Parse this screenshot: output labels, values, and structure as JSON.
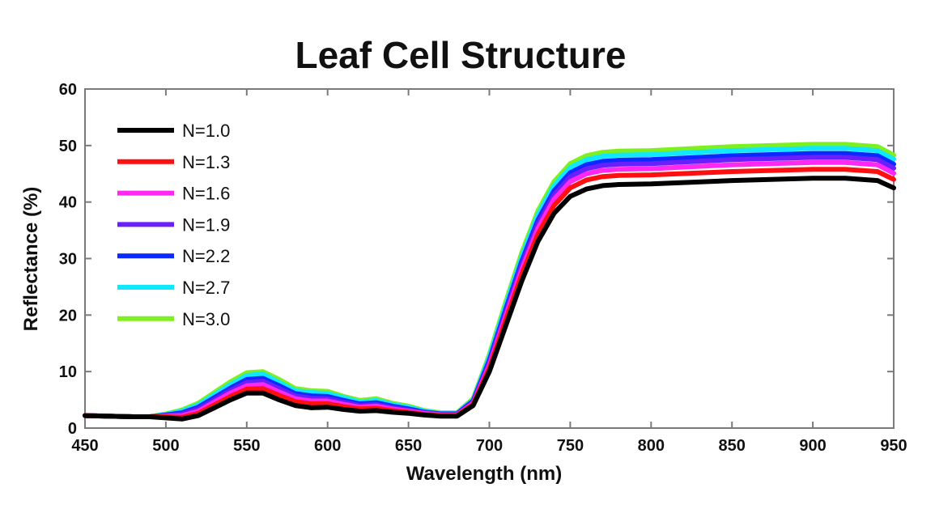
{
  "chart_data": {
    "type": "line",
    "title": "Leaf Cell Structure",
    "xlabel": "Wavelength (nm)",
    "ylabel": "Reflectance (%)",
    "xlim": [
      450,
      950
    ],
    "ylim": [
      0,
      60
    ],
    "x_ticks": [
      450,
      500,
      550,
      600,
      650,
      700,
      750,
      800,
      850,
      900,
      950
    ],
    "y_ticks": [
      0,
      10,
      20,
      30,
      40,
      50,
      60
    ],
    "grid": false,
    "legend_position": "top-left",
    "x": [
      450,
      480,
      490,
      500,
      510,
      520,
      530,
      540,
      550,
      560,
      570,
      580,
      590,
      600,
      610,
      620,
      630,
      640,
      650,
      660,
      670,
      680,
      690,
      700,
      710,
      720,
      730,
      740,
      750,
      760,
      770,
      780,
      800,
      850,
      900,
      920,
      940,
      950
    ],
    "series": [
      {
        "name": "N=1.0",
        "color": "#000000",
        "values": [
          2.2,
          2.0,
          2.0,
          1.8,
          1.6,
          2.2,
          3.6,
          5.0,
          6.2,
          6.2,
          5.0,
          4.0,
          3.6,
          3.7,
          3.3,
          3.0,
          3.1,
          2.8,
          2.6,
          2.3,
          2.1,
          2.1,
          4.0,
          10.0,
          18.0,
          26.0,
          33.0,
          38.0,
          41.0,
          42.3,
          42.9,
          43.1,
          43.2,
          43.8,
          44.2,
          44.2,
          43.8,
          42.5
        ]
      },
      {
        "name": "N=1.3",
        "color": "#ff1010",
        "values": [
          2.2,
          2.0,
          2.0,
          2.0,
          1.9,
          2.6,
          4.1,
          5.6,
          6.9,
          7.0,
          5.8,
          4.7,
          4.3,
          4.3,
          3.8,
          3.4,
          3.5,
          3.1,
          2.8,
          2.4,
          2.2,
          2.2,
          4.2,
          10.6,
          19.0,
          27.2,
          34.3,
          39.4,
          42.5,
          43.9,
          44.5,
          44.7,
          44.8,
          45.4,
          45.8,
          45.8,
          45.4,
          44.0
        ]
      },
      {
        "name": "N=1.6",
        "color": "#ff28f0",
        "values": [
          2.2,
          2.0,
          2.0,
          2.1,
          2.2,
          3.0,
          4.6,
          6.2,
          7.5,
          7.7,
          6.4,
          5.2,
          4.8,
          4.8,
          4.2,
          3.7,
          3.9,
          3.4,
          3.0,
          2.6,
          2.3,
          2.3,
          4.4,
          11.1,
          19.7,
          28.1,
          35.3,
          40.5,
          43.6,
          45.0,
          45.6,
          45.8,
          45.9,
          46.6,
          47.0,
          47.0,
          46.6,
          45.1
        ]
      },
      {
        "name": "N=1.9",
        "color": "#6a1fff",
        "values": [
          2.2,
          2.0,
          2.0,
          2.2,
          2.5,
          3.4,
          5.0,
          6.7,
          8.1,
          8.3,
          7.0,
          5.7,
          5.3,
          5.2,
          4.6,
          4.0,
          4.2,
          3.6,
          3.2,
          2.7,
          2.4,
          2.4,
          4.6,
          11.6,
          20.4,
          28.9,
          36.1,
          41.3,
          44.5,
          45.9,
          46.5,
          46.7,
          46.8,
          47.5,
          47.9,
          47.9,
          47.5,
          46.0
        ]
      },
      {
        "name": "N=2.2",
        "color": "#0a28ff",
        "values": [
          2.2,
          2.0,
          2.0,
          2.3,
          2.7,
          3.7,
          5.4,
          7.1,
          8.6,
          8.8,
          7.5,
          6.1,
          5.7,
          5.6,
          4.9,
          4.3,
          4.5,
          3.9,
          3.4,
          2.8,
          2.5,
          2.5,
          4.8,
          12.0,
          20.9,
          29.5,
          36.8,
          42.0,
          45.2,
          46.6,
          47.2,
          47.4,
          47.5,
          48.2,
          48.6,
          48.6,
          48.2,
          46.7
        ]
      },
      {
        "name": "N=2.7",
        "color": "#10e8ff",
        "values": [
          2.2,
          2.0,
          2.0,
          2.4,
          3.0,
          4.1,
          5.9,
          7.7,
          9.3,
          9.6,
          8.1,
          6.6,
          6.3,
          6.1,
          5.4,
          4.6,
          4.9,
          4.2,
          3.7,
          3.0,
          2.6,
          2.6,
          5.0,
          12.6,
          21.6,
          30.3,
          37.7,
          42.9,
          46.1,
          47.5,
          48.1,
          48.3,
          48.4,
          49.1,
          49.5,
          49.5,
          49.1,
          47.6
        ]
      },
      {
        "name": "N=3.0",
        "color": "#7ef020",
        "values": [
          2.2,
          2.0,
          2.0,
          2.5,
          3.2,
          4.4,
          6.3,
          8.2,
          9.8,
          10.0,
          8.6,
          7.0,
          6.6,
          6.5,
          5.6,
          4.9,
          5.2,
          4.4,
          3.9,
          3.1,
          2.7,
          2.7,
          5.2,
          13.0,
          22.2,
          31.0,
          38.4,
          43.6,
          46.8,
          48.2,
          48.8,
          49.0,
          49.1,
          49.8,
          50.2,
          50.2,
          49.8,
          48.3
        ]
      }
    ]
  }
}
